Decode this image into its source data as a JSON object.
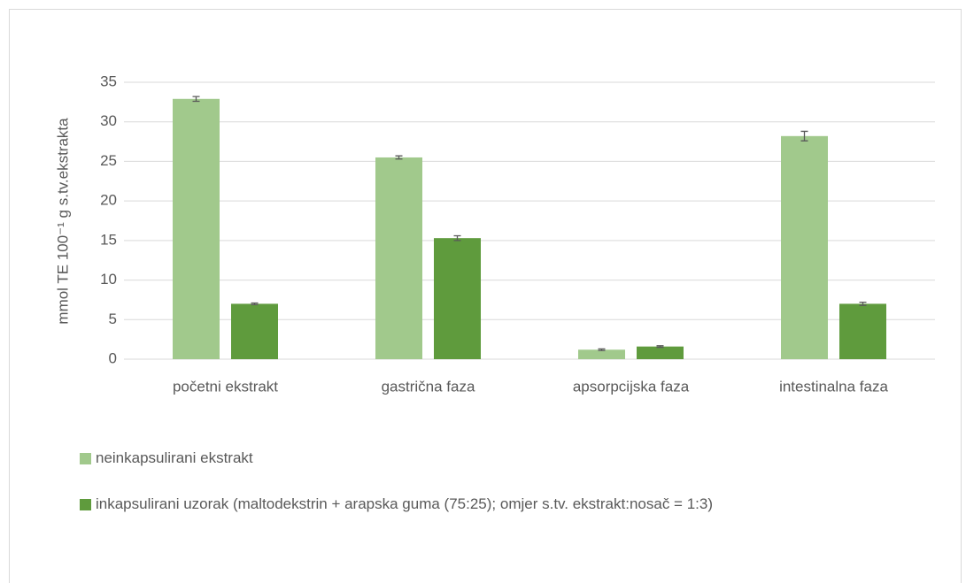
{
  "chart_data": {
    "type": "bar",
    "y_label": "mmol TE 100⁻¹ g s.tv.ekstrakta",
    "categories": [
      "početni ekstrakt",
      "gastrična faza",
      "apsorpcijska faza",
      "intestinalna faza"
    ],
    "series": [
      {
        "name": "neinkapsulirani ekstrakt",
        "color": "#a1c98c",
        "values": [
          32.9,
          25.5,
          1.2,
          28.2
        ],
        "errors": [
          0.3,
          0.2,
          0.1,
          0.6
        ]
      },
      {
        "name": "inkapsulirani uzorak (maltodekstrin + arapska guma (75:25); omjer s.tv. ekstrakt:nosač = 1:3)",
        "color": "#5f9b3d",
        "values": [
          7.0,
          15.3,
          1.6,
          7.0
        ],
        "errors": [
          0.1,
          0.3,
          0.1,
          0.2
        ]
      }
    ],
    "ylim": [
      0,
      35
    ],
    "yticks": [
      0,
      5,
      10,
      15,
      20,
      25,
      30,
      35
    ],
    "grid": true,
    "legend": "bottom"
  }
}
